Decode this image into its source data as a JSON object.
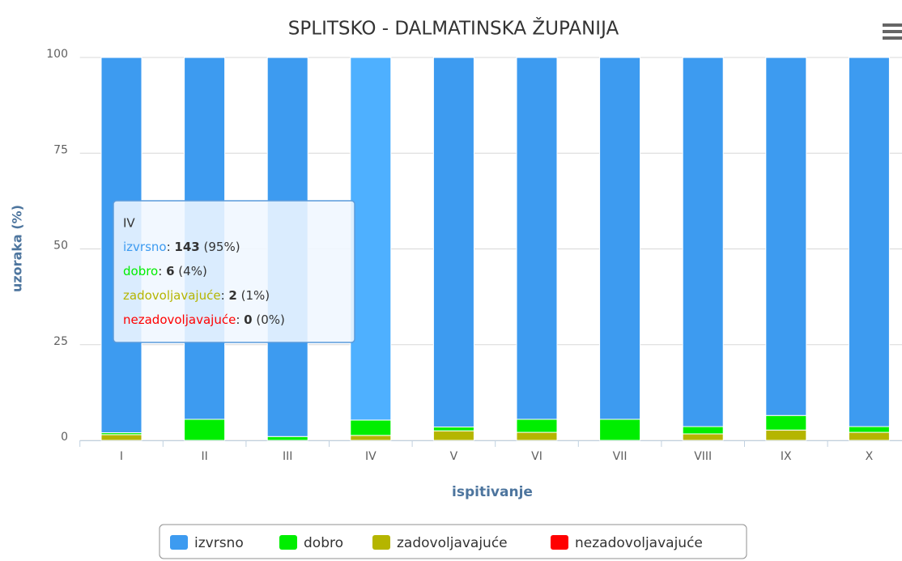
{
  "chart_data": {
    "type": "stacked_bar",
    "title": "SPLITSKO - DALMATINSKA ŽUPANIJA",
    "x_label": "ispitivanje",
    "y_label": "uzoraka (%)",
    "categories": [
      "I",
      "II",
      "III",
      "IV",
      "V",
      "VI",
      "VII",
      "VIII",
      "IX",
      "X"
    ],
    "ylim": [
      0,
      100
    ],
    "yticks": [
      0,
      25,
      50,
      75,
      100
    ],
    "grid": true,
    "series": [
      {
        "name": "izvrsno",
        "color": "#3d9bf0",
        "highlight_color": "#4eb0ff",
        "values": [
          98,
          94.5,
          99,
          94.7,
          96.5,
          94.5,
          94.5,
          96.4,
          93.5,
          96.4
        ]
      },
      {
        "name": "dobro",
        "color": "#00ee00",
        "values": [
          0.5,
          5.5,
          1,
          4.0,
          1,
          3.4,
          5.5,
          1.9,
          3.8,
          1.5
        ]
      },
      {
        "name": "zadovoljavajuće",
        "color": "#b5b500",
        "values": [
          1.5,
          0,
          0,
          1.3,
          2.5,
          2.1,
          0,
          1.7,
          2.7,
          2.1
        ]
      },
      {
        "name": "nezadovoljavajuće",
        "color": "#ff0000",
        "values": [
          0,
          0,
          0,
          0,
          0,
          0,
          0,
          0,
          0,
          0
        ]
      }
    ],
    "tooltip": {
      "items": [
        {
          "count": 143,
          "percent_label": "(95%)"
        },
        {
          "count": 6,
          "percent_label": "(4%)"
        },
        {
          "count": 2,
          "percent_label": "(1%)"
        },
        {
          "count": 0,
          "percent_label": "(0%)"
        }
      ]
    }
  }
}
